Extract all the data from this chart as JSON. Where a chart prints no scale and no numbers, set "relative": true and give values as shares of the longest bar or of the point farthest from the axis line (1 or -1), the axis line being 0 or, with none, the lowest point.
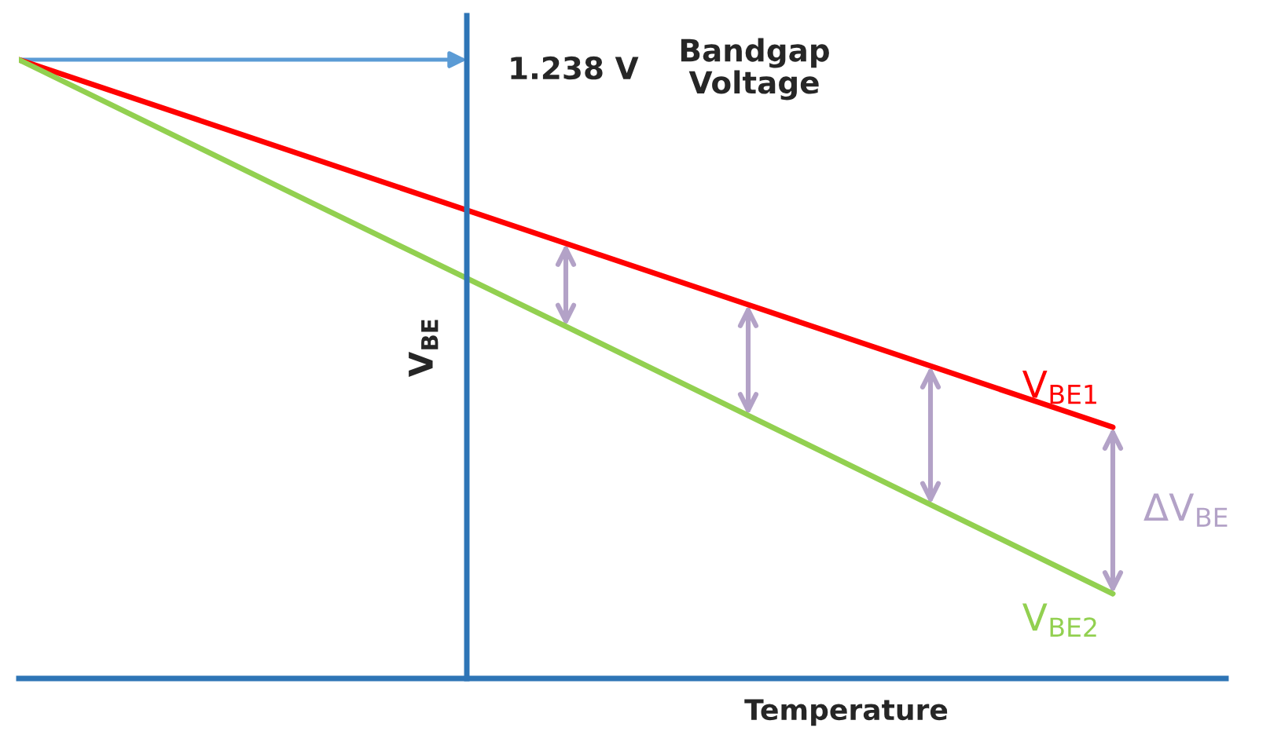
{
  "chart_data": {
    "type": "line",
    "relative": true,
    "legend": false,
    "grid": false,
    "marker": "none",
    "line_style": "solid",
    "xlabel": "Temperature",
    "ylabel": "V$_{BE}$",
    "categories": [
      null,
      null,
      null,
      null,
      null,
      null,
      null
    ],
    "series": [
      {
        "name": "V$_{BE1}$",
        "color": "#ff0000",
        "values": [
          1,
          0.901,
          0.802,
          0.703,
          0.604,
          0.505,
          0.406
        ]
      },
      {
        "name": "V$_{BE2}$",
        "color": "#92d050",
        "values": [
          1,
          0.856,
          0.712,
          0.569,
          0.425,
          0.281,
          0.137
        ]
      }
    ],
    "annotations": [
      "1.238 V",
      "Bandgap\nVoltage",
      "ΔV$_{BE}$"
    ]
  }
}
